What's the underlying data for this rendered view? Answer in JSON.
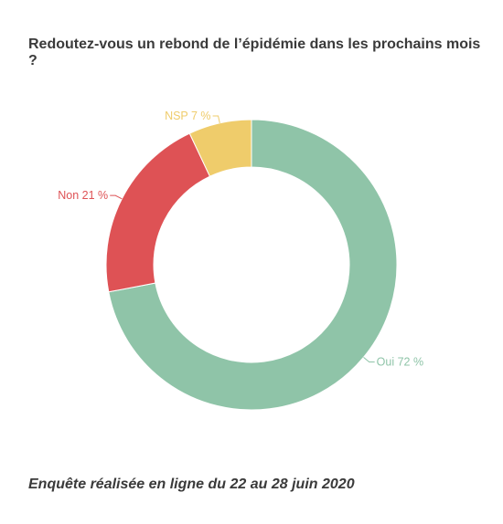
{
  "title": "Redoutez-vous un rebond de l’épidémie dans les prochains mois ?",
  "footnote": "Enquête réalisée en ligne du 22 au 28 juin 2020",
  "chart_data": {
    "type": "pie",
    "donut": true,
    "slices": [
      {
        "label": "Oui 72 %",
        "category": "Oui",
        "value": 72,
        "color": "#8fc4a8"
      },
      {
        "label": "Non 21 %",
        "category": "Non",
        "value": 21,
        "color": "#de5255"
      },
      {
        "label": "NSP 7 %",
        "category": "NSP",
        "value": 7,
        "color": "#efcc6b"
      }
    ]
  }
}
